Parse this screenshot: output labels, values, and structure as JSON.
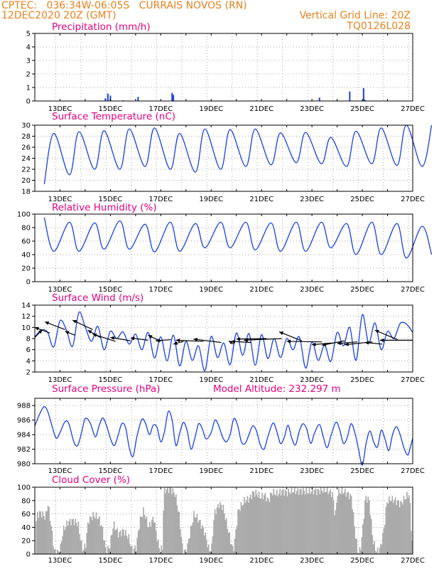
{
  "header": {
    "line1_left": "CPTEC:   036:34W-06:05S   CURRAIS NOVOS (RN)",
    "line2_left": "12DEC2020 20Z (GMT)",
    "line2_right": "Vertical Grid Line: 20Z",
    "line3_right": "TQ0126L028"
  },
  "colors": {
    "header": "#e8821e",
    "title": "#e6007e",
    "series": "#1a3fe0",
    "cloud": "#aaaaaa",
    "grid": "#aaaaaa"
  },
  "x_axis": {
    "day_start": 12,
    "day_end": 27,
    "labels": [
      {
        "day": 13,
        "text": "13DEC"
      },
      {
        "day": 15,
        "text": "15DEC"
      },
      {
        "day": 17,
        "text": "17DEC"
      },
      {
        "day": 19,
        "text": "19DEC"
      },
      {
        "day": 21,
        "text": "21DEC"
      },
      {
        "day": 23,
        "text": "23DEC"
      },
      {
        "day": 25,
        "text": "25DEC"
      },
      {
        "day": 27,
        "text": "27DEC"
      }
    ]
  },
  "chart_data": [
    {
      "id": "precip",
      "type": "bar",
      "title": "Precipitation (mm/h)",
      "ylim": [
        0,
        5
      ],
      "yticks": [
        0,
        1,
        2,
        3,
        4,
        5
      ],
      "points": [
        [
          14.8,
          0.2
        ],
        [
          14.9,
          0.55
        ],
        [
          15.0,
          0.4
        ],
        [
          16.1,
          0.3
        ],
        [
          17.45,
          0.6
        ],
        [
          17.5,
          0.45
        ],
        [
          23.3,
          0.25
        ],
        [
          24.5,
          0.7
        ],
        [
          25.05,
          0.95
        ],
        [
          25.1,
          0.1
        ],
        [
          15.5,
          0.05
        ],
        [
          20.8,
          0.05
        ]
      ]
    },
    {
      "id": "temp",
      "type": "line",
      "title": "Surface Temperature (nC)",
      "ylim": [
        18,
        30
      ],
      "yticks": [
        18,
        20,
        22,
        24,
        26,
        28,
        30
      ],
      "diurnal": {
        "min_hour": 9,
        "max_hour": 18
      },
      "daily_max": [
        28.5,
        28.8,
        29.0,
        29.3,
        29.5,
        28.5,
        29.3,
        29.2,
        29.3,
        28.6,
        28.7,
        27.8,
        28.9,
        29.5,
        30.0,
        30.0
      ],
      "daily_min": [
        19.3,
        21.0,
        22.0,
        22.0,
        22.5,
        22.0,
        21.5,
        22.0,
        22.5,
        22.8,
        23.2,
        23.0,
        22.5,
        23.0,
        22.7,
        22.5
      ]
    },
    {
      "id": "rh",
      "type": "line",
      "title": "Relative Humidity (%)",
      "ylim": [
        0,
        100
      ],
      "yticks": [
        0,
        20,
        40,
        60,
        80,
        100
      ],
      "diurnal": {
        "min_hour": 18,
        "max_hour": 9
      },
      "daily_max": [
        95,
        88,
        87,
        90,
        85,
        88,
        86,
        88,
        88,
        87,
        88,
        88,
        86,
        88,
        86,
        82
      ],
      "daily_min": [
        45,
        45,
        48,
        48,
        44,
        45,
        50,
        50,
        47,
        45,
        45,
        50,
        40,
        40,
        35,
        40
      ]
    },
    {
      "id": "wind",
      "type": "line",
      "title": "Surface Wind (m/s)",
      "ylim": [
        2,
        14
      ],
      "yticks": [
        2,
        4,
        6,
        8,
        10,
        12,
        14
      ],
      "points": [
        [
          12.0,
          8.3
        ],
        [
          12.25,
          9.5
        ],
        [
          12.5,
          9.2
        ],
        [
          12.75,
          6.5
        ],
        [
          13.0,
          11.2
        ],
        [
          13.25,
          9.6
        ],
        [
          13.5,
          6.6
        ],
        [
          13.75,
          12.7
        ],
        [
          14.0,
          10.1
        ],
        [
          14.25,
          7.5
        ],
        [
          14.5,
          10.2
        ],
        [
          14.75,
          6.0
        ],
        [
          15.0,
          9.3
        ],
        [
          15.25,
          8.0
        ],
        [
          15.5,
          9.2
        ],
        [
          15.75,
          7.0
        ],
        [
          16.0,
          8.8
        ],
        [
          16.25,
          6.0
        ],
        [
          16.5,
          9.1
        ],
        [
          16.75,
          4.5
        ],
        [
          17.0,
          8.3
        ],
        [
          17.25,
          4.0
        ],
        [
          17.5,
          8.6
        ],
        [
          17.75,
          3.1
        ],
        [
          18.0,
          7.5
        ],
        [
          18.25,
          4.1
        ],
        [
          18.5,
          6.7
        ],
        [
          18.75,
          2.2
        ],
        [
          19.0,
          8.4
        ],
        [
          19.25,
          4.6
        ],
        [
          19.5,
          7.2
        ],
        [
          19.75,
          3.3
        ],
        [
          20.0,
          9.0
        ],
        [
          20.25,
          5.0
        ],
        [
          20.5,
          8.9
        ],
        [
          20.75,
          3.2
        ],
        [
          21.0,
          8.7
        ],
        [
          21.25,
          4.4
        ],
        [
          21.5,
          8.0
        ],
        [
          21.75,
          4.6
        ],
        [
          22.0,
          8.0
        ],
        [
          22.25,
          6.0
        ],
        [
          22.5,
          8.3
        ],
        [
          22.75,
          2.7
        ],
        [
          23.0,
          7.4
        ],
        [
          23.25,
          4.1
        ],
        [
          23.5,
          6.8
        ],
        [
          23.75,
          3.9
        ],
        [
          24.0,
          9.1
        ],
        [
          24.25,
          6.7
        ],
        [
          24.5,
          10.0
        ],
        [
          24.75,
          4.1
        ],
        [
          25.0,
          12.3
        ],
        [
          25.25,
          7.2
        ],
        [
          25.5,
          10.8
        ],
        [
          25.75,
          6.0
        ],
        [
          26.0,
          9.3
        ],
        [
          26.25,
          8.0
        ],
        [
          26.5,
          10.7
        ],
        [
          26.75,
          10.6
        ],
        [
          27.0,
          9.1
        ]
      ],
      "arrows": [
        [
          12.0,
          8.2,
          12.3,
          9.6
        ],
        [
          12.6,
          9.0,
          12.0,
          10.0
        ],
        [
          13.2,
          9.6,
          12.4,
          11.0
        ],
        [
          13.6,
          8.6,
          13.2,
          9.3
        ],
        [
          14.3,
          9.6,
          13.5,
          11.3
        ],
        [
          14.6,
          8.2,
          14.1,
          9.5
        ],
        [
          15.2,
          7.5,
          14.3,
          8.8
        ],
        [
          15.8,
          7.6,
          15.0,
          8.2
        ],
        [
          16.5,
          7.7,
          15.8,
          8.1
        ],
        [
          17.0,
          7.5,
          16.5,
          8.6
        ],
        [
          17.4,
          7.8,
          16.8,
          7.6
        ],
        [
          17.9,
          7.5,
          17.5,
          7.0
        ],
        [
          18.7,
          7.5,
          17.6,
          7.7
        ],
        [
          19.4,
          7.3,
          18.3,
          7.9
        ],
        [
          19.9,
          7.0,
          19.7,
          7.6
        ],
        [
          20.6,
          7.3,
          19.8,
          7.5
        ],
        [
          21.2,
          8.0,
          20.0,
          7.9
        ],
        [
          21.8,
          8.0,
          20.3,
          7.7
        ],
        [
          22.6,
          7.6,
          21.7,
          9.2
        ],
        [
          23.4,
          7.4,
          22.0,
          7.5
        ],
        [
          23.8,
          7.2,
          23.0,
          6.9
        ],
        [
          24.3,
          7.6,
          23.4,
          6.8
        ],
        [
          24.8,
          7.4,
          24.0,
          7.1
        ],
        [
          25.4,
          7.4,
          24.3,
          6.9
        ],
        [
          25.8,
          7.0,
          25.1,
          7.3
        ],
        [
          26.4,
          7.8,
          25.5,
          9.5
        ],
        [
          27.0,
          7.7,
          25.7,
          7.7
        ]
      ]
    },
    {
      "id": "press",
      "type": "line",
      "title": "Surface Pressure (hPa)",
      "subtitle": "Model Altitude: 232.297 m",
      "ylim": [
        980,
        989
      ],
      "yticks": [
        980,
        982,
        984,
        986,
        988
      ],
      "points": [
        [
          12.0,
          985.2
        ],
        [
          12.15,
          986.5
        ],
        [
          12.35,
          987.8
        ],
        [
          12.5,
          987.3
        ],
        [
          12.7,
          985.0
        ],
        [
          12.85,
          983.5
        ],
        [
          13.0,
          984.3
        ],
        [
          13.2,
          985.8
        ],
        [
          13.35,
          985.5
        ],
        [
          13.55,
          983.0
        ],
        [
          13.7,
          982.5
        ],
        [
          13.85,
          984.2
        ],
        [
          14.0,
          986.2
        ],
        [
          14.2,
          985.6
        ],
        [
          14.4,
          983.7
        ],
        [
          14.55,
          985.2
        ],
        [
          14.7,
          986.3
        ],
        [
          14.85,
          985.2
        ],
        [
          15.0,
          983.5
        ],
        [
          15.15,
          982.5
        ],
        [
          15.3,
          983.8
        ],
        [
          15.45,
          985.5
        ],
        [
          15.6,
          985.0
        ],
        [
          15.75,
          982.2
        ],
        [
          15.9,
          981.0
        ],
        [
          16.05,
          983.7
        ],
        [
          16.25,
          986.1
        ],
        [
          16.4,
          985.5
        ],
        [
          16.55,
          984.0
        ],
        [
          16.7,
          985.3
        ],
        [
          16.85,
          985.0
        ],
        [
          17.0,
          983.0
        ],
        [
          17.15,
          984.5
        ],
        [
          17.3,
          987.2
        ],
        [
          17.45,
          986.0
        ],
        [
          17.6,
          982.5
        ],
        [
          17.75,
          984.2
        ],
        [
          17.9,
          985.7
        ],
        [
          18.05,
          984.5
        ],
        [
          18.2,
          982.0
        ],
        [
          18.35,
          983.5
        ],
        [
          18.5,
          985.5
        ],
        [
          18.65,
          984.8
        ],
        [
          18.8,
          983.4
        ],
        [
          19.0,
          984.3
        ],
        [
          19.15,
          986.0
        ],
        [
          19.3,
          985.2
        ],
        [
          19.45,
          983.7
        ],
        [
          19.6,
          983.0
        ],
        [
          19.75,
          984.0
        ],
        [
          19.9,
          986.2
        ],
        [
          20.05,
          985.3
        ],
        [
          20.2,
          983.0
        ],
        [
          20.35,
          982.8
        ],
        [
          20.5,
          984.0
        ],
        [
          20.65,
          985.2
        ],
        [
          20.8,
          984.5
        ],
        [
          20.95,
          982.6
        ],
        [
          21.1,
          982.0
        ],
        [
          21.25,
          983.7
        ],
        [
          21.45,
          985.6
        ],
        [
          21.6,
          984.5
        ],
        [
          21.75,
          982.8
        ],
        [
          21.9,
          983.6
        ],
        [
          22.05,
          985.3
        ],
        [
          22.2,
          983.5
        ],
        [
          22.35,
          982.6
        ],
        [
          22.5,
          984.5
        ],
        [
          22.65,
          985.5
        ],
        [
          22.8,
          984.7
        ],
        [
          22.95,
          982.8
        ],
        [
          23.1,
          984.2
        ],
        [
          23.3,
          985.4
        ],
        [
          23.45,
          983.7
        ],
        [
          23.6,
          982.2
        ],
        [
          23.75,
          983.8
        ],
        [
          23.95,
          985.7
        ],
        [
          24.1,
          984.7
        ],
        [
          24.25,
          982.8
        ],
        [
          24.4,
          983.6
        ],
        [
          24.55,
          985.5
        ],
        [
          24.7,
          984.3
        ],
        [
          24.85,
          982.0
        ],
        [
          25.0,
          979.8
        ],
        [
          25.15,
          982.8
        ],
        [
          25.3,
          984.5
        ],
        [
          25.45,
          983.0
        ],
        [
          25.6,
          982.3
        ],
        [
          25.75,
          984.6
        ],
        [
          25.9,
          983.4
        ],
        [
          26.05,
          981.8
        ],
        [
          26.2,
          984.0
        ],
        [
          26.35,
          985.1
        ],
        [
          26.5,
          984.0
        ],
        [
          26.65,
          982.2
        ],
        [
          26.8,
          981.2
        ],
        [
          26.9,
          982.2
        ],
        [
          27.0,
          983.5
        ]
      ]
    },
    {
      "id": "cloud",
      "type": "area",
      "title": "Cloud Cover (%)",
      "ylim": [
        0,
        100
      ],
      "yticks": [
        0,
        20,
        40,
        60,
        80,
        100
      ],
      "points": [
        [
          12.0,
          0
        ],
        [
          12.05,
          58
        ],
        [
          12.2,
          62
        ],
        [
          12.4,
          55
        ],
        [
          12.5,
          75
        ],
        [
          12.6,
          50
        ],
        [
          12.75,
          5
        ],
        [
          12.9,
          2
        ],
        [
          13.0,
          10
        ],
        [
          13.1,
          35
        ],
        [
          13.3,
          48
        ],
        [
          13.5,
          50
        ],
        [
          13.7,
          45
        ],
        [
          13.8,
          20
        ],
        [
          13.9,
          5
        ],
        [
          14.0,
          15
        ],
        [
          14.1,
          50
        ],
        [
          14.3,
          58
        ],
        [
          14.5,
          55
        ],
        [
          14.65,
          40
        ],
        [
          14.8,
          6
        ],
        [
          14.95,
          10
        ],
        [
          15.1,
          45
        ],
        [
          15.3,
          30
        ],
        [
          15.5,
          35
        ],
        [
          15.7,
          25
        ],
        [
          15.85,
          5
        ],
        [
          16.0,
          10
        ],
        [
          16.15,
          50
        ],
        [
          16.3,
          65
        ],
        [
          16.5,
          40
        ],
        [
          16.7,
          55
        ],
        [
          16.85,
          20
        ],
        [
          16.95,
          5
        ],
        [
          17.05,
          10
        ],
        [
          17.1,
          95
        ],
        [
          17.35,
          98
        ],
        [
          17.55,
          90
        ],
        [
          17.7,
          60
        ],
        [
          17.85,
          5
        ],
        [
          18.0,
          3
        ],
        [
          18.1,
          25
        ],
        [
          18.3,
          60
        ],
        [
          18.5,
          50
        ],
        [
          18.7,
          35
        ],
        [
          18.9,
          5
        ],
        [
          19.0,
          10
        ],
        [
          19.1,
          60
        ],
        [
          19.3,
          75
        ],
        [
          19.45,
          70
        ],
        [
          19.6,
          45
        ],
        [
          19.75,
          20
        ],
        [
          19.85,
          5
        ],
        [
          19.9,
          15
        ],
        [
          20.05,
          65
        ],
        [
          20.3,
          80
        ],
        [
          20.5,
          83
        ],
        [
          20.65,
          92
        ],
        [
          20.8,
          90
        ],
        [
          20.95,
          85
        ],
        [
          21.1,
          88
        ],
        [
          21.25,
          80
        ],
        [
          21.4,
          93
        ],
        [
          21.6,
          90
        ],
        [
          21.8,
          94
        ],
        [
          22.0,
          92
        ],
        [
          22.2,
          95
        ],
        [
          22.4,
          94
        ],
        [
          22.6,
          95
        ],
        [
          22.8,
          93
        ],
        [
          23.0,
          95
        ],
        [
          23.2,
          94
        ],
        [
          23.4,
          96
        ],
        [
          23.6,
          95
        ],
        [
          23.8,
          90
        ],
        [
          23.9,
          55
        ],
        [
          24.0,
          92
        ],
        [
          24.2,
          94
        ],
        [
          24.4,
          90
        ],
        [
          24.55,
          85
        ],
        [
          24.7,
          30
        ],
        [
          24.8,
          3
        ],
        [
          24.9,
          5
        ],
        [
          25.0,
          40
        ],
        [
          25.1,
          85
        ],
        [
          25.25,
          80
        ],
        [
          25.4,
          20
        ],
        [
          25.55,
          3
        ],
        [
          25.7,
          10
        ],
        [
          25.85,
          40
        ],
        [
          25.95,
          78
        ],
        [
          26.1,
          82
        ],
        [
          26.3,
          80
        ],
        [
          26.5,
          75
        ],
        [
          26.7,
          85
        ],
        [
          26.85,
          90
        ],
        [
          26.93,
          30
        ],
        [
          27.0,
          3
        ]
      ]
    }
  ]
}
